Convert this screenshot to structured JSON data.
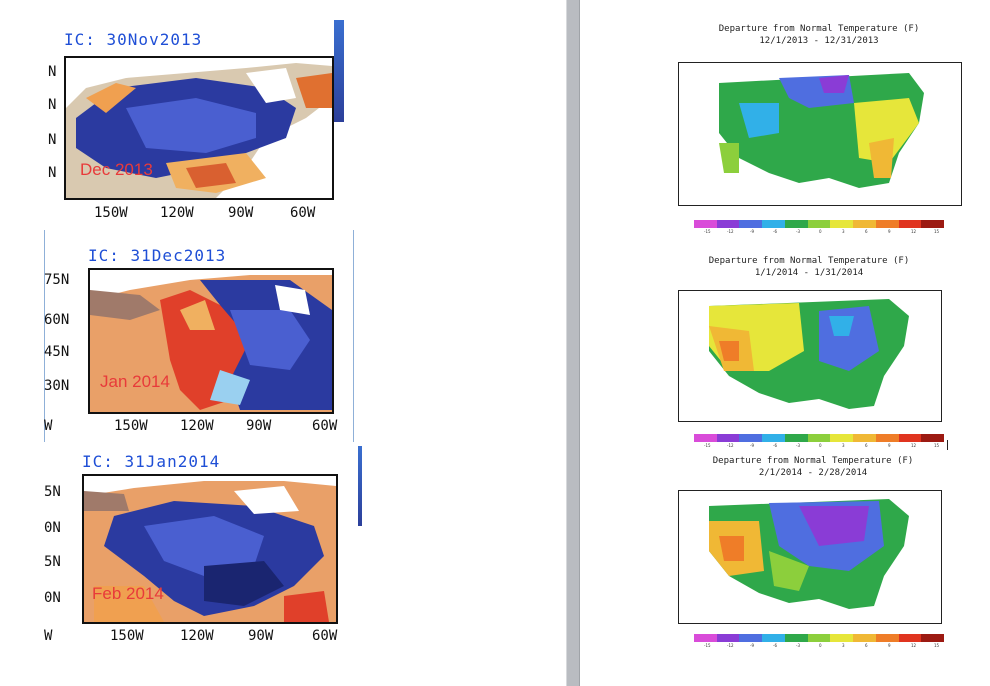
{
  "left_panels": [
    {
      "ic": "IC: 30Nov2013",
      "month": "Dec 2013",
      "lat_labels": [
        "N",
        "N",
        "N",
        "N"
      ],
      "lon_labels": [
        "150W",
        "120W",
        "90W",
        "60W"
      ]
    },
    {
      "ic": "IC: 31Dec2013",
      "month": "Jan 2014",
      "lat_labels": [
        "75N",
        "60N",
        "45N",
        "30N"
      ],
      "lon_labels": [
        "W",
        "150W",
        "120W",
        "90W",
        "60W"
      ]
    },
    {
      "ic": "IC: 31Jan2014",
      "month": "Feb 2014",
      "lat_labels": [
        "5N",
        "0N",
        "5N",
        "0N"
      ],
      "lon_labels": [
        "W",
        "150W",
        "120W",
        "90W",
        "60W"
      ]
    }
  ],
  "right_panels": [
    {
      "title": "Departure from Normal Temperature (F)",
      "dates": "12/1/2013 - 12/31/2013"
    },
    {
      "title": "Departure from Normal Temperature (F)",
      "dates": "1/1/2014 - 1/31/2014"
    },
    {
      "title": "Departure from Normal Temperature (F)",
      "dates": "2/1/2014 - 2/28/2014"
    }
  ],
  "colorbar": {
    "ticks": [
      "-15",
      "-12",
      "-9",
      "-6",
      "-3",
      "0",
      "3",
      "6",
      "9",
      "12",
      "15"
    ],
    "colors": [
      "#d94cd9",
      "#8a3cd6",
      "#4f6ee0",
      "#31b0e8",
      "#2fa84a",
      "#8ccf3c",
      "#e6e63a",
      "#f0b835",
      "#ef7d28",
      "#e0341f",
      "#9c1a12"
    ]
  }
}
